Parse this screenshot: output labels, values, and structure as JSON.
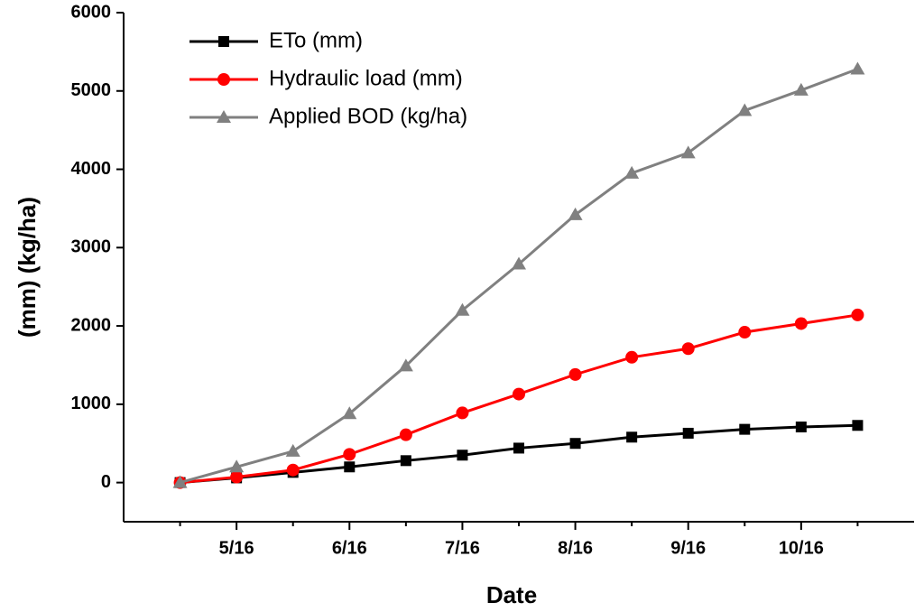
{
  "chart_data": {
    "type": "line",
    "xlabel": "Date",
    "ylabel": "(mm)  (kg/ha)",
    "categories": [
      null,
      "5/16",
      null,
      "6/16",
      null,
      "7/16",
      null,
      "8/16",
      null,
      "9/16",
      null,
      "10/16",
      null
    ],
    "series": [
      {
        "name": "ETo (mm)",
        "color": "#000000",
        "marker": "square",
        "values": [
          0,
          60,
          130,
          200,
          280,
          350,
          440,
          500,
          580,
          630,
          680,
          710,
          730
        ]
      },
      {
        "name": "Hydraulic load (mm)",
        "color": "#ff0000",
        "marker": "circle",
        "values": [
          0,
          70,
          160,
          360,
          610,
          890,
          1130,
          1380,
          1600,
          1710,
          1920,
          2030,
          2140
        ]
      },
      {
        "name": "Applied BOD (kg/ha)",
        "color": "#808080",
        "marker": "triangle",
        "values": [
          0,
          200,
          400,
          880,
          1490,
          2200,
          2790,
          3420,
          3950,
          4210,
          4750,
          5010,
          5280
        ]
      }
    ],
    "ylim": [
      -500,
      6000
    ],
    "yticks": [
      0,
      1000,
      2000,
      3000,
      4000,
      5000,
      6000
    ],
    "grid": false,
    "legend": "upper left"
  }
}
